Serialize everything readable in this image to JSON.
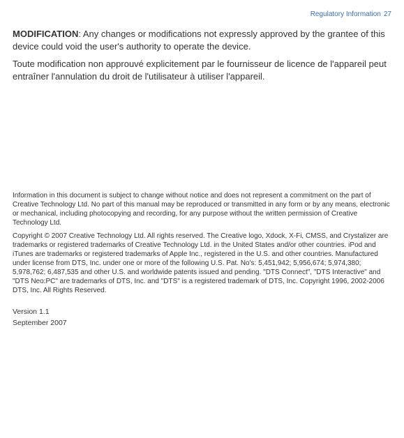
{
  "header": {
    "section_title": "Regulatory Information",
    "page_number": "27"
  },
  "body": {
    "mod_label": "MODIFICATION",
    "mod_text_en": ": Any changes or modifications not expressly approved by the grantee of this device could void the user's authority to operate the device.",
    "mod_text_fr": "Toute modification non approuvé explicitement par le fournisseur de licence de l'appareil peut entraîner l'annulation du droit de l'utilisateur à utiliser l'appareil."
  },
  "fineprint": {
    "disclaimer": "Information in this document is subject to change without notice and does not represent a commitment on the part of Creative Technology Ltd. No part of this manual may be reproduced or transmitted in any form or by any means, electronic or mechanical, including photocopying and recording, for any purpose without the written permission of Creative Technology Ltd.",
    "copyright": "Copyright © 2007 Creative Technology Ltd. All rights reserved. The Creative logo, Xdock, X-Fi, CMSS, and Crystalizer are trademarks or registered trademarks of Creative Technology Ltd. in the United States and/or other countries. iPod and iTunes are trademarks or registered trademarks of Apple Inc., registered in the U.S. and other countries. Manufactured under license from DTS, Inc. under one or more of the following U.S. Pat. No's: 5,451,942; 5,956,674; 5,974,380; 5,978,762; 6,487,535 and other U.S. and worldwide patents issued and pending. \"DTS Connect\", \"DTS Interactive\" and \"DTS Neo:PC\" are trademarks of DTS, Inc. and \"DTS\" is a registered trademark of DTS, Inc. Copyright 1996, 2002-2006 DTS, Inc. All Rights Reserved."
  },
  "version": {
    "line1": "Version 1.1",
    "line2": "September 2007"
  }
}
